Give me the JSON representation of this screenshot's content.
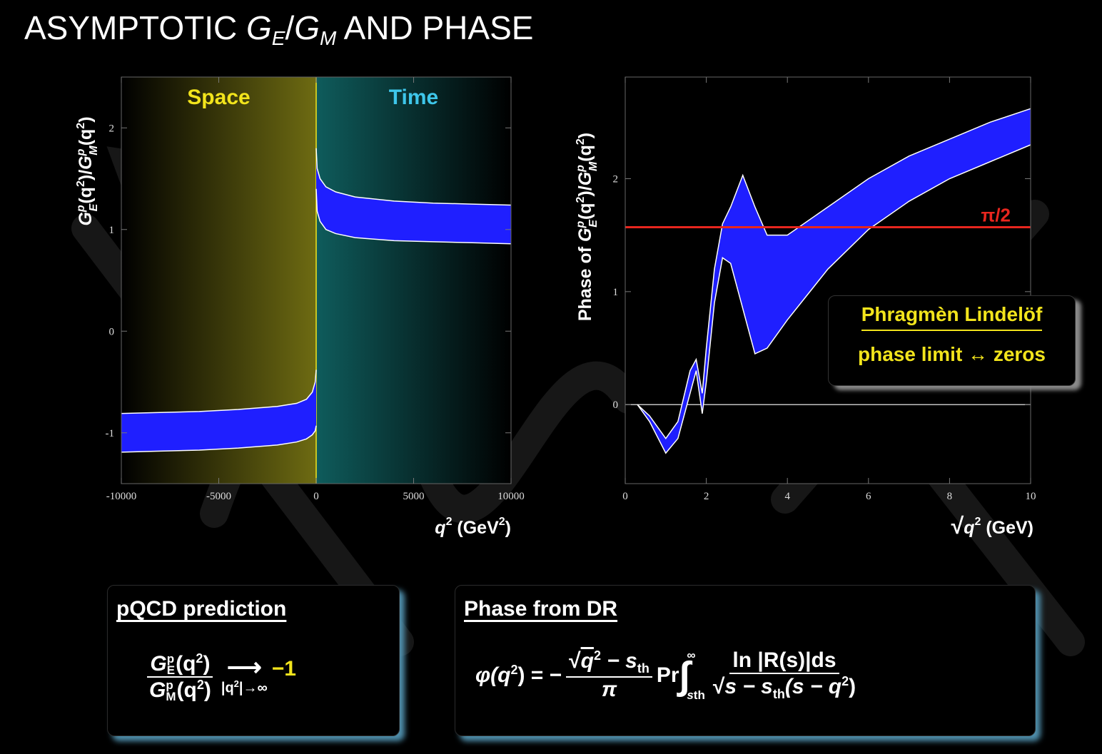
{
  "title": {
    "a": "ASYMPTOTIC",
    "g1": "G",
    "e": "E",
    "slash": "/",
    "g2": "G",
    "m": "M",
    "b": "AND PHASE"
  },
  "chart_data": [
    {
      "type": "band",
      "ylabel": [
        "G",
        "p",
        "E",
        "(q",
        "2",
        ")/",
        "G",
        "p",
        "M",
        "(q",
        "2",
        ")"
      ],
      "xlabel": [
        "q",
        "2",
        " (GeV",
        "2",
        ")"
      ],
      "xlim": [
        -10000,
        10000
      ],
      "ylim": [
        -1.5,
        2.5
      ],
      "xticks": [
        -10000,
        -5000,
        0,
        5000,
        10000
      ],
      "yticks": [
        -1,
        0,
        1,
        2
      ],
      "color": "#1f1fff",
      "edge_color": "#ffffff",
      "regions": [
        {
          "label": "Space",
          "from": -10000,
          "to": 0,
          "color": "#6e6b12",
          "label_color": "#f2e41c"
        },
        {
          "label": "Time",
          "from": 0,
          "to": 10000,
          "color": "#0f5c5c",
          "label_color": "#3ec6ea"
        }
      ],
      "bands": [
        {
          "x": [
            -10000,
            -8000,
            -6000,
            -4000,
            -2000,
            -1000,
            -500,
            -200,
            -50,
            0
          ],
          "upper": [
            -0.81,
            -0.8,
            -0.79,
            -0.77,
            -0.74,
            -0.71,
            -0.67,
            -0.6,
            -0.5,
            -0.38
          ],
          "lower": [
            -1.19,
            -1.18,
            -1.17,
            -1.15,
            -1.12,
            -1.09,
            -1.06,
            -1.02,
            -0.98,
            -0.93
          ]
        },
        {
          "x": [
            0,
            50,
            200,
            500,
            1000,
            2000,
            4000,
            6000,
            8000,
            10000
          ],
          "upper": [
            1.8,
            1.6,
            1.5,
            1.42,
            1.37,
            1.32,
            1.28,
            1.26,
            1.25,
            1.24
          ],
          "lower": [
            1.4,
            1.18,
            1.08,
            1.0,
            0.96,
            0.92,
            0.89,
            0.88,
            0.87,
            0.86
          ]
        }
      ]
    },
    {
      "type": "band",
      "ylabel": [
        "Phase of ",
        "G",
        "p",
        "E",
        "(q",
        "2",
        ")/",
        "G",
        "p",
        "M",
        "(q",
        "2",
        ")"
      ],
      "xlabel": [
        "√",
        "q",
        "2",
        " (GeV)"
      ],
      "xlim": [
        0,
        10
      ],
      "ylim": [
        -0.7,
        2.9
      ],
      "xticks": [
        0,
        2,
        4,
        6,
        8,
        10
      ],
      "yticks": [
        0,
        1,
        2
      ],
      "color": "#1f1fff",
      "edge_color": "#ffffff",
      "zero_line": true,
      "reference_line": {
        "value": 1.5708,
        "label": "π/2",
        "color": "#e8261e"
      },
      "bands": [
        {
          "x": [
            0.3,
            0.6,
            1.0,
            1.3,
            1.6,
            1.75,
            1.9,
            2.0,
            2.2,
            2.4,
            2.6,
            2.9,
            3.2,
            3.5,
            4.0,
            5,
            6,
            7,
            8,
            9,
            10
          ],
          "upper": [
            0,
            -0.1,
            -0.3,
            -0.15,
            0.3,
            0.4,
            0.1,
            0.5,
            1.2,
            1.6,
            1.75,
            2.03,
            1.75,
            1.5,
            1.5,
            1.75,
            2.0,
            2.2,
            2.35,
            2.5,
            2.62
          ],
          "lower": [
            0,
            -0.15,
            -0.43,
            -0.3,
            0.1,
            0.3,
            -0.08,
            0.2,
            0.9,
            1.3,
            1.25,
            0.85,
            0.45,
            0.5,
            0.75,
            1.2,
            1.55,
            1.8,
            2.0,
            2.15,
            2.3
          ]
        }
      ]
    }
  ],
  "callout": {
    "line1": "Phragmèn Lindelöf",
    "line2": "phase limit ↔ zeros"
  },
  "pqcd": {
    "heading": "pQCD prediction",
    "num": [
      "G",
      "p",
      "E",
      "(q",
      "2",
      ")"
    ],
    "den": [
      "G",
      "p",
      "M",
      "(q",
      "2",
      ")"
    ],
    "arrow": "⟶",
    "limit": [
      "|q",
      "2",
      "|→∞"
    ],
    "result": "−1"
  },
  "dr": {
    "heading": "Phase from DR",
    "lhs": [
      "φ(q",
      "2",
      ") = −"
    ],
    "num1": [
      "√",
      "q",
      "2",
      " − s",
      "th"
    ],
    "den1": "π",
    "pr": "Pr",
    "int": "∫",
    "int_lo": [
      "s",
      "th"
    ],
    "int_hi": "∞",
    "num2": "ln |R(s)|ds",
    "den2": [
      "√",
      "s − s",
      "th",
      "(s − q",
      "2",
      ")"
    ]
  }
}
